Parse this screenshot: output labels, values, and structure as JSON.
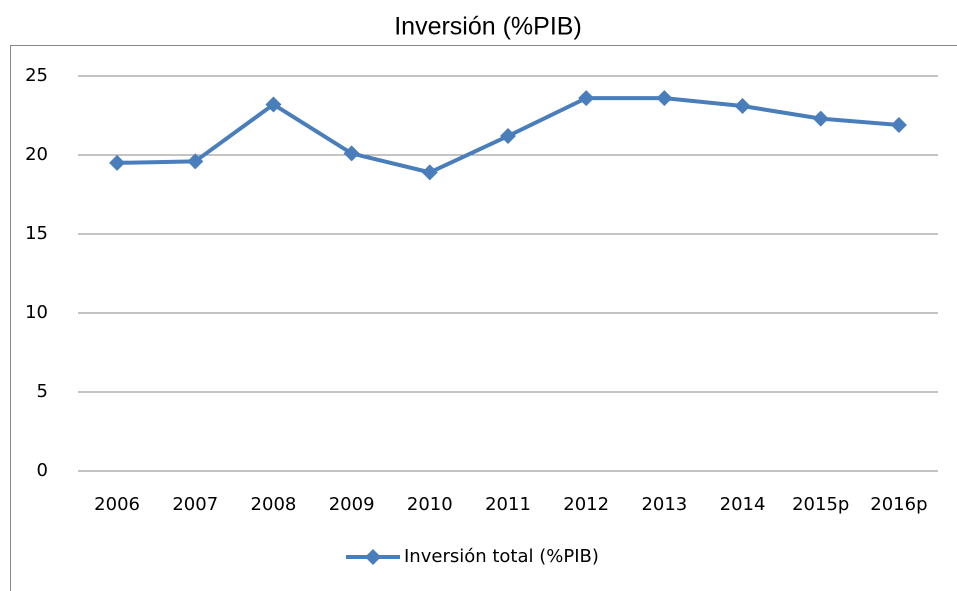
{
  "chart_data": {
    "type": "line",
    "title": "Inversión (%PIB)",
    "categories": [
      "2006",
      "2007",
      "2008",
      "2009",
      "2010",
      "2011",
      "2012",
      "2013",
      "2014",
      "2015p",
      "2016p"
    ],
    "series": [
      {
        "name": "Inversión total (%PIB)",
        "color": "#4a7ebb",
        "values": [
          19.5,
          19.6,
          23.2,
          20.1,
          18.9,
          21.2,
          23.6,
          23.6,
          23.1,
          22.3,
          21.9
        ]
      }
    ],
    "ylim": [
      0,
      25
    ],
    "yticks": [
      0,
      5,
      10,
      15,
      20,
      25
    ],
    "grid": true,
    "legend": "bottom"
  }
}
